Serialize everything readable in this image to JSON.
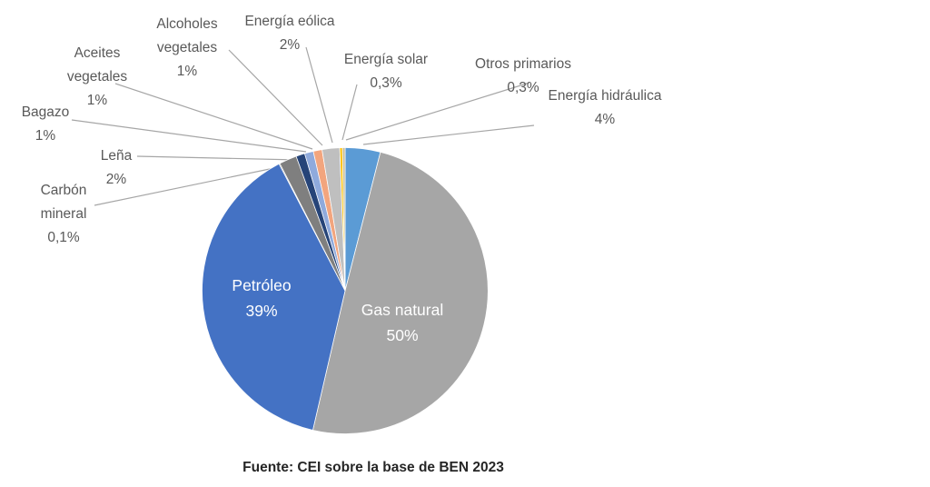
{
  "chart_data": {
    "type": "pie",
    "title": "",
    "unit": "percent",
    "start_angle_deg": 0,
    "direction": "clockwise",
    "legend_position": "none",
    "labels_style": "callouts-with-leader-lines",
    "slices": [
      {
        "label": "Energía hidráulica",
        "value": 4,
        "display": "4%",
        "color": "#5B9BD5"
      },
      {
        "label": "Gas natural",
        "value": 50,
        "display": "50%",
        "color": "#A6A6A6"
      },
      {
        "label": "Petróleo",
        "value": 39,
        "display": "39%",
        "color": "#4472C4"
      },
      {
        "label": "Carbón mineral",
        "value": 0.1,
        "display": "0,1%",
        "color": "#404040"
      },
      {
        "label": "Leña",
        "value": 2,
        "display": "2%",
        "color": "#7F7F7F"
      },
      {
        "label": "Bagazo",
        "value": 1,
        "display": "1%",
        "color": "#264478"
      },
      {
        "label": "Aceites vegetales",
        "value": 1,
        "display": "1%",
        "color": "#8FAADC"
      },
      {
        "label": "Alcoholes vegetales",
        "value": 1,
        "display": "1%",
        "color": "#F2A57E"
      },
      {
        "label": "Energía eólica",
        "value": 2,
        "display": "2%",
        "color": "#BFBFBF"
      },
      {
        "label": "Energía solar",
        "value": 0.3,
        "display": "0,3%",
        "color": "#FFC000"
      },
      {
        "label": "Otros primarios",
        "value": 0.3,
        "display": "0,3%",
        "color": "#C9BE97"
      }
    ],
    "inside_labels": [
      "Gas natural",
      "Petróleo"
    ],
    "source_note": "Fuente: CEI sobre la base de BEN 2023",
    "leader_line_color": "#A6A6A6",
    "callout_text_color": "#595959",
    "inside_label_text_color": "#FFFFFF"
  },
  "footer": {
    "source_note": "Fuente: CEI sobre la base de BEN 2023"
  }
}
